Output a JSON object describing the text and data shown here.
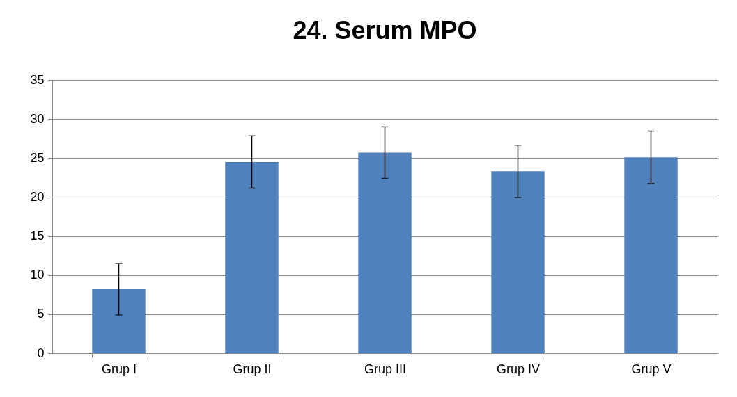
{
  "chart_data": {
    "type": "bar",
    "title": "24. Serum MPO",
    "categories": [
      "Grup I",
      "Grup II",
      "Grup III",
      "Grup IV",
      "Grup V"
    ],
    "values": [
      8.2,
      24.5,
      25.7,
      23.3,
      25.1
    ],
    "errors": [
      3.3,
      3.35,
      3.3,
      3.35,
      3.35
    ],
    "color": "#4f81bd",
    "ylim": [
      0,
      35
    ],
    "yticks": [
      0,
      5,
      10,
      15,
      20,
      25,
      30,
      35
    ],
    "grid": "y"
  }
}
